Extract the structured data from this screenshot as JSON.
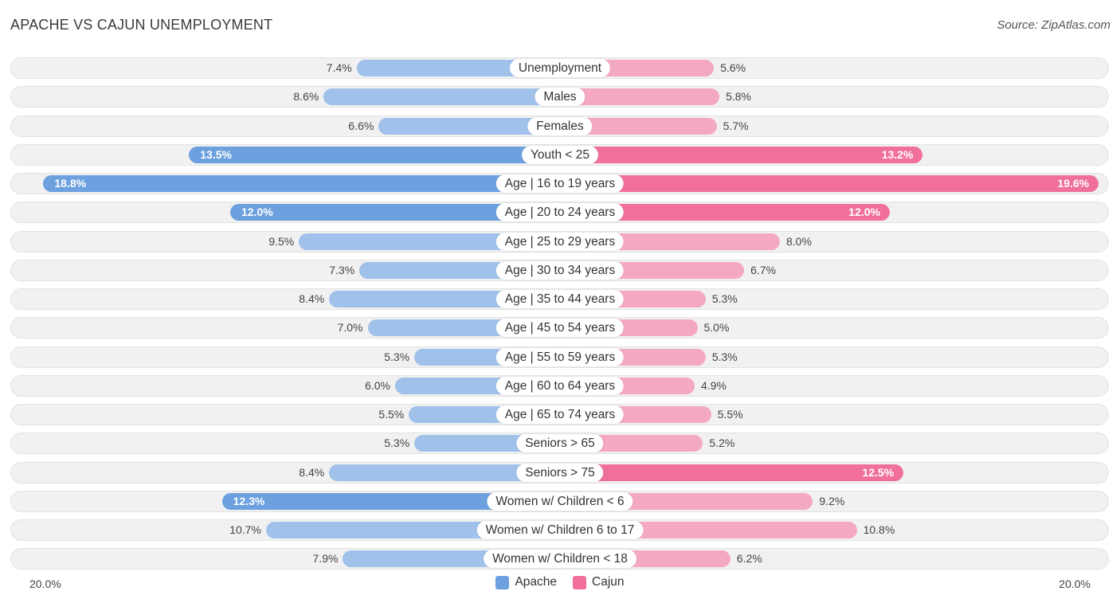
{
  "header": {
    "title": "APACHE VS CAJUN UNEMPLOYMENT",
    "source": "Source: ZipAtlas.com"
  },
  "colors": {
    "apache": "#9fc1ea",
    "apache_strong": "#6ca0de",
    "cajun": "#f5a8c1",
    "cajun_strong": "#f07099"
  },
  "chart_data": {
    "type": "bar",
    "orientation": "horizontal-diverging",
    "title": "APACHE VS CAJUN UNEMPLOYMENT",
    "xlim": [
      -20,
      20
    ],
    "axis_left_label": "20.0%",
    "axis_right_label": "20.0%",
    "categories": [
      "Unemployment",
      "Males",
      "Females",
      "Youth < 25",
      "Age | 16 to 19 years",
      "Age | 20 to 24 years",
      "Age | 25 to 29 years",
      "Age | 30 to 34 years",
      "Age | 35 to 44 years",
      "Age | 45 to 54 years",
      "Age | 55 to 59 years",
      "Age | 60 to 64 years",
      "Age | 65 to 74 years",
      "Seniors > 65",
      "Seniors > 75",
      "Women w/ Children < 6",
      "Women w/ Children 6 to 17",
      "Women w/ Children < 18"
    ],
    "series": [
      {
        "name": "Apache",
        "values": [
          7.4,
          8.6,
          6.6,
          13.5,
          18.8,
          12.0,
          9.5,
          7.3,
          8.4,
          7.0,
          5.3,
          6.0,
          5.5,
          5.3,
          8.4,
          12.3,
          10.7,
          7.9
        ],
        "labels": [
          "7.4%",
          "8.6%",
          "6.6%",
          "13.5%",
          "18.8%",
          "12.0%",
          "9.5%",
          "7.3%",
          "8.4%",
          "7.0%",
          "5.3%",
          "6.0%",
          "5.5%",
          "5.3%",
          "8.4%",
          "12.3%",
          "10.7%",
          "7.9%"
        ]
      },
      {
        "name": "Cajun",
        "values": [
          5.6,
          5.8,
          5.7,
          13.2,
          19.6,
          12.0,
          8.0,
          6.7,
          5.3,
          5.0,
          5.3,
          4.9,
          5.5,
          5.2,
          12.5,
          9.2,
          10.8,
          6.2
        ],
        "labels": [
          "5.6%",
          "5.8%",
          "5.7%",
          "13.2%",
          "19.6%",
          "12.0%",
          "8.0%",
          "6.7%",
          "5.3%",
          "5.0%",
          "5.3%",
          "4.9%",
          "5.5%",
          "5.2%",
          "12.5%",
          "9.2%",
          "10.8%",
          "6.2%"
        ]
      }
    ],
    "legend": [
      "Apache",
      "Cajun"
    ],
    "legend_position": "bottom-center"
  }
}
